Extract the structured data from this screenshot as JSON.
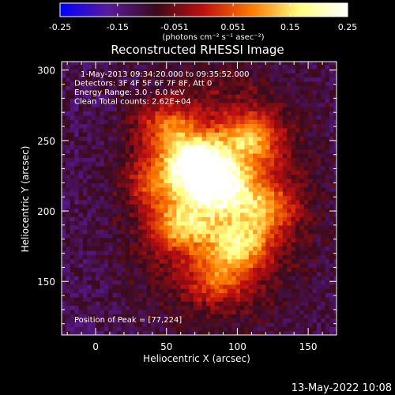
{
  "chart_data": {
    "type": "heatmap",
    "title": "Reconstructed RHESSI Image",
    "colorbar": {
      "min": -0.25,
      "max": 0.25,
      "ticks": [
        "-0.25",
        "-0.15",
        "-0.051",
        "0.051",
        "0.15",
        "0.25"
      ],
      "unit_label": "(photons cm⁻² s⁻¹ asec⁻²)",
      "colormap": [
        "#0000ff",
        "#5a1a9c",
        "#3a0a1a",
        "#c01010",
        "#ff7a00",
        "#ffff80",
        "#ffffff"
      ]
    },
    "xlabel": "Heliocentric X (arcsec)",
    "ylabel": "Heliocentric Y (arcsec)",
    "xlim": [
      -24,
      170
    ],
    "ylim": [
      112,
      306
    ],
    "xticks": [
      0,
      50,
      100,
      150
    ],
    "yticks": [
      150,
      200,
      250,
      300
    ],
    "info_lines": [
      "1-May-2013 09:34:20.000 to 09:35:52.000",
      "Detectors: 3F 4F 5F 6F 7F 8F, Att 0",
      "Energy Range: 3.0 - 6.0 keV",
      "Clean     Total counts: 2.62E+04"
    ],
    "peak_label": "Position of Peak = [77,224]",
    "peak": {
      "x": 77,
      "y": 224,
      "value": 0.25
    },
    "sources": [
      {
        "x": 77,
        "y": 224,
        "peak": 0.25
      },
      {
        "x": 67,
        "y": 236,
        "peak": 0.18
      },
      {
        "x": 60,
        "y": 190,
        "peak": 0.16
      },
      {
        "x": 100,
        "y": 175,
        "peak": 0.16
      },
      {
        "x": 108,
        "y": 250,
        "peak": 0.15
      },
      {
        "x": 48,
        "y": 258,
        "peak": 0.12
      },
      {
        "x": 92,
        "y": 212,
        "peak": 0.14
      },
      {
        "x": 120,
        "y": 200,
        "peak": 0.11
      },
      {
        "x": 40,
        "y": 220,
        "peak": 0.1
      },
      {
        "x": 85,
        "y": 150,
        "peak": 0.1
      }
    ]
  },
  "footer": {
    "timestamp": "13-May-2022 10:08"
  }
}
